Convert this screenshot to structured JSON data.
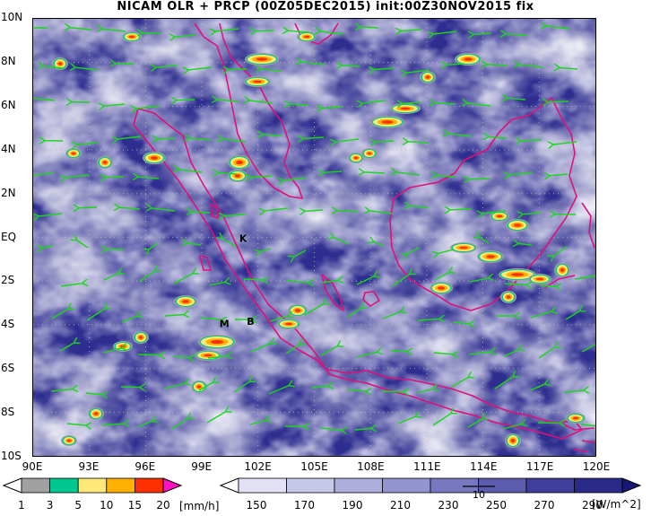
{
  "title": "NICAM OLR + PRCP (00Z05DEC2015) init:00Z30NOV2015 fix",
  "y_labels": [
    "10N",
    "8N",
    "6N",
    "4N",
    "2N",
    "EQ",
    "2S",
    "4S",
    "6S",
    "8S",
    "10S"
  ],
  "x_labels": [
    "90E",
    "93E",
    "96E",
    "99E",
    "102E",
    "105E",
    "108E",
    "111E",
    "114E",
    "117E",
    "120E"
  ],
  "markers": [
    {
      "label": "K",
      "lon": 101.2,
      "lat": 0.0
    },
    {
      "label": "M",
      "lon": 100.2,
      "lat": -3.9
    },
    {
      "label": "B",
      "lon": 101.6,
      "lat": -3.8
    }
  ],
  "prcp_legend": {
    "ticks": [
      "1",
      "3",
      "5",
      "10",
      "15",
      "20"
    ],
    "unit": "[mm/h]",
    "colors": [
      "#ffffff",
      "#a0a0a0",
      "#00c890",
      "#ffe878",
      "#ffb000",
      "#ff3000",
      "#ff10c0"
    ]
  },
  "olr_legend": {
    "ticks": [
      "150",
      "170",
      "190",
      "210",
      "230",
      "250",
      "270",
      "290"
    ],
    "unit": "[W/m^2]",
    "colors": [
      "#ffffff",
      "#e2e2f4",
      "#c8c8e8",
      "#aeaedc",
      "#9494d0",
      "#7878c0",
      "#5c5cae",
      "#40409c",
      "#2a2a88",
      "#181874"
    ],
    "wind_reference": "10"
  },
  "colors": {
    "ocean": "#2e2e90",
    "coast": "#e0107a",
    "vector": "#18d818",
    "grid": "#b8b8b8"
  }
}
